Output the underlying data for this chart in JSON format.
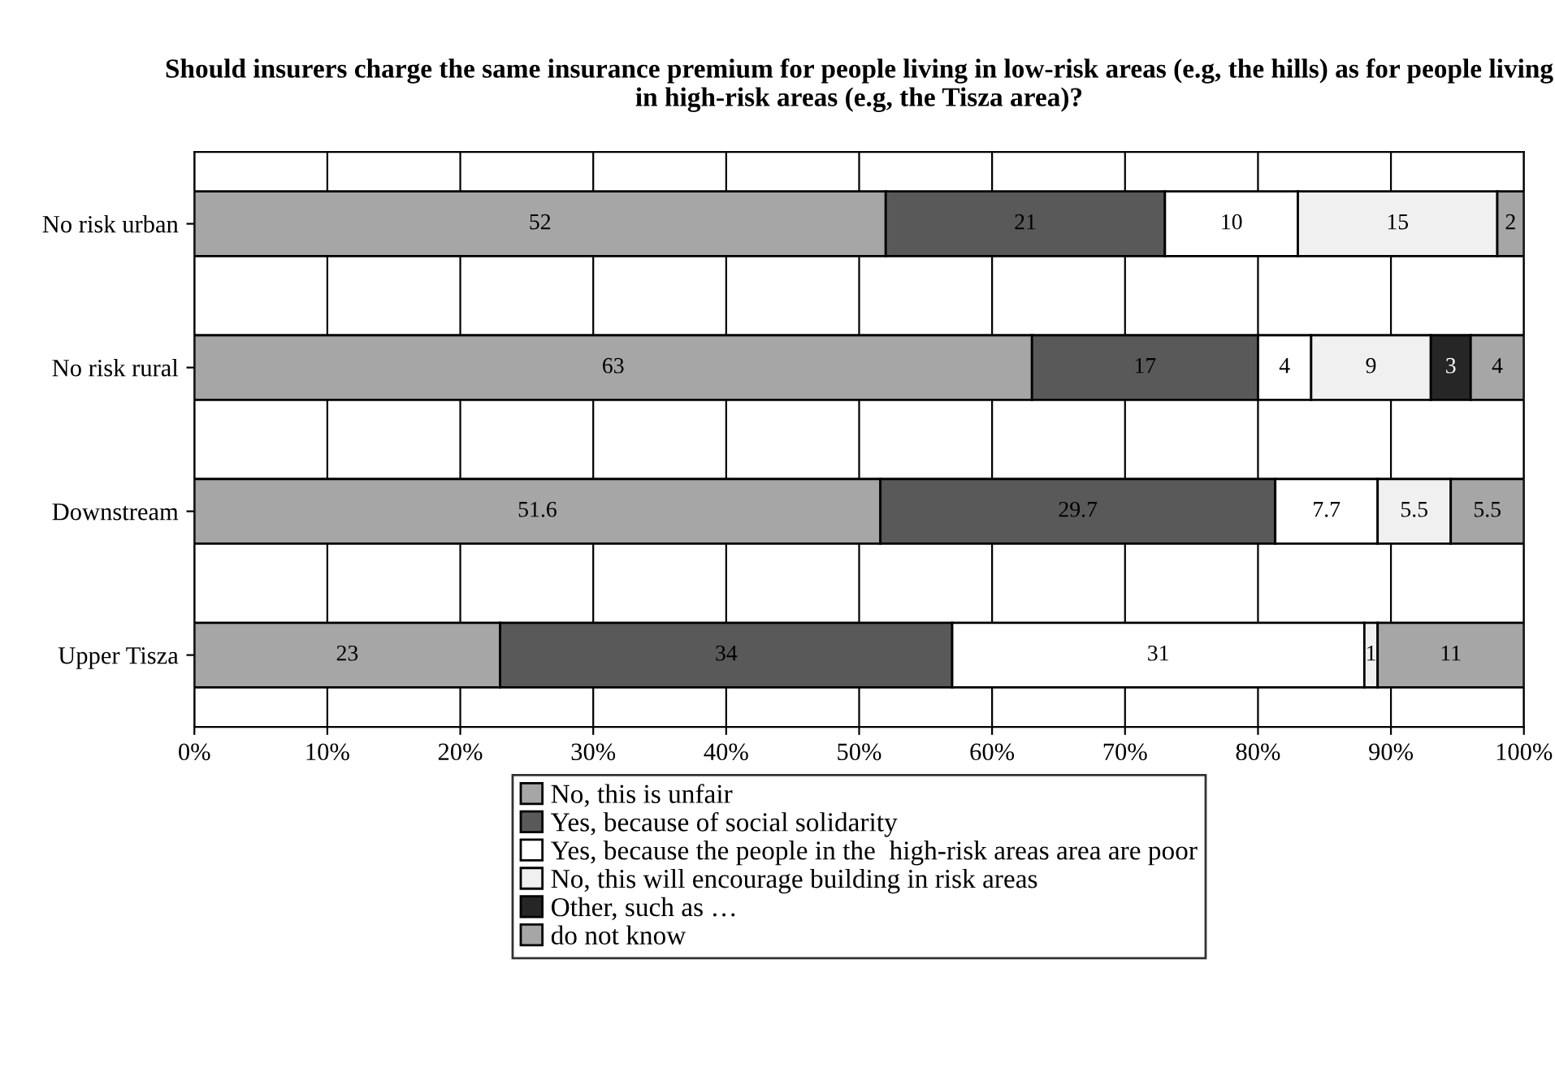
{
  "chart_data": {
    "type": "bar",
    "orientation": "horizontal",
    "stacked": true,
    "title": "Should insurers charge the same insurance premium for people living in low-risk areas (e.g, the hills) as for people living in high-risk areas (e.g, the Tisza area)?",
    "categories": [
      "No risk urban",
      "No risk rural",
      "Downstream",
      "Upper Tisza"
    ],
    "series": [
      {
        "name": "No, this is unfair",
        "color": "#a6a6a6",
        "values": [
          52,
          63,
          51.6,
          23
        ]
      },
      {
        "name": "Yes, because of social solidarity",
        "color": "#595959",
        "values": [
          21,
          17,
          29.7,
          34
        ]
      },
      {
        "name": "Yes, because the people in the  high-risk areas area are poor",
        "color": "#ffffff",
        "values": [
          10,
          4,
          7.7,
          31
        ]
      },
      {
        "name": "No, this will encourage building in risk areas",
        "color": "#f0f0f0",
        "values": [
          15,
          9,
          5.5,
          1
        ]
      },
      {
        "name": "Other, such as …",
        "color": "#262626",
        "values": [
          null,
          3,
          null,
          null
        ]
      },
      {
        "name": "do not know",
        "color": "#a6a6a6",
        "values": [
          2,
          4,
          5.5,
          11
        ]
      }
    ],
    "xlim": [
      0,
      100
    ],
    "xticks": [
      {
        "value": 0,
        "label": "0%"
      },
      {
        "value": 10,
        "label": "10%"
      },
      {
        "value": 20,
        "label": "20%"
      },
      {
        "value": 30,
        "label": "30%"
      },
      {
        "value": 40,
        "label": "40%"
      },
      {
        "value": 50,
        "label": "50%"
      },
      {
        "value": 60,
        "label": "60%"
      },
      {
        "value": 70,
        "label": "70%"
      },
      {
        "value": 80,
        "label": "80%"
      },
      {
        "value": 90,
        "label": "90%"
      },
      {
        "value": 100,
        "label": "100%"
      }
    ],
    "grid": "x",
    "data_labels": true,
    "legend": "bottom"
  }
}
